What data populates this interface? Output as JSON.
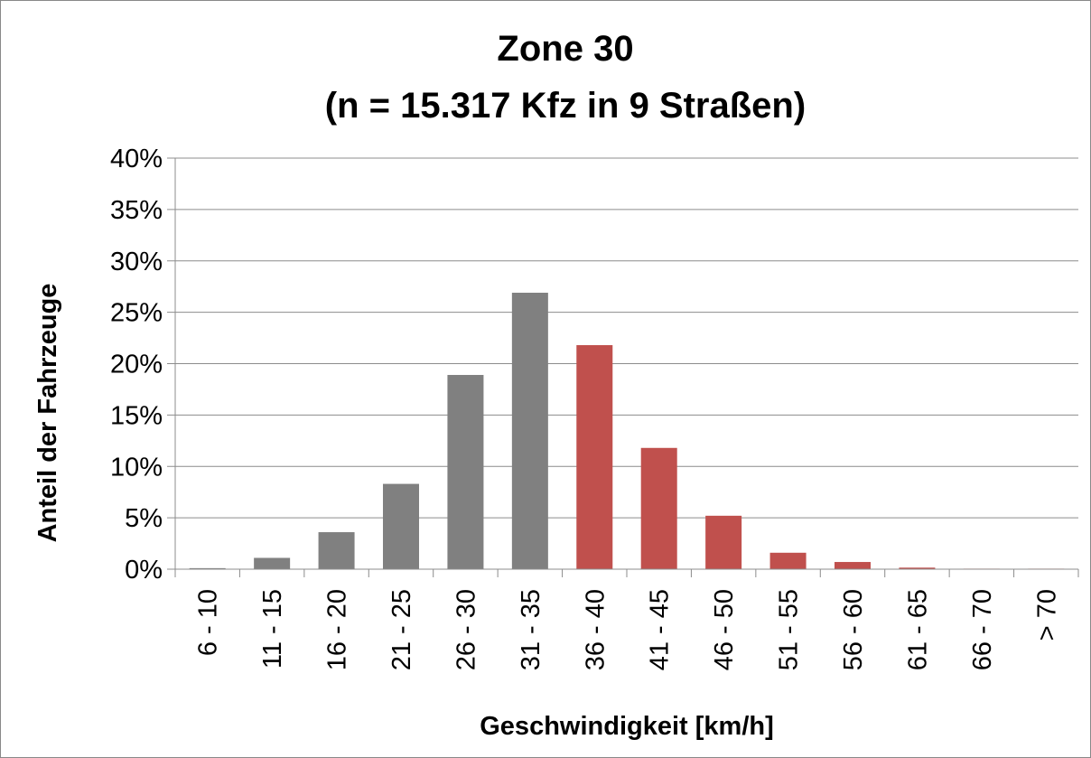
{
  "chart_data": {
    "type": "bar",
    "title": "Zone 30",
    "subtitle": "(n = 15.317 Kfz in 9 Straßen)",
    "xlabel": "Geschwindigkeit [km/h]",
    "ylabel": "Anteil der Fahrzeuge",
    "categories": [
      "6 - 10",
      "11 - 15",
      "16 - 20",
      "21 - 25",
      "26 - 30",
      "31 - 35",
      "36 - 40",
      "41 - 45",
      "46 - 50",
      "51 - 55",
      "56 - 60",
      "61 - 65",
      "66 - 70",
      "> 70"
    ],
    "values": [
      0.1,
      1.1,
      3.6,
      8.3,
      18.9,
      26.9,
      21.8,
      11.8,
      5.2,
      1.6,
      0.7,
      0.15,
      0.05,
      0.05
    ],
    "bar_colors": [
      "#808080",
      "#808080",
      "#808080",
      "#808080",
      "#808080",
      "#808080",
      "#c0504d",
      "#c0504d",
      "#c0504d",
      "#c0504d",
      "#c0504d",
      "#c0504d",
      "#c0504d",
      "#c0504d"
    ],
    "ylim": [
      0,
      40
    ],
    "yticks": [
      "0%",
      "5%",
      "10%",
      "15%",
      "20%",
      "25%",
      "30%",
      "35%",
      "40%"
    ],
    "grid": true,
    "legend": "none"
  }
}
